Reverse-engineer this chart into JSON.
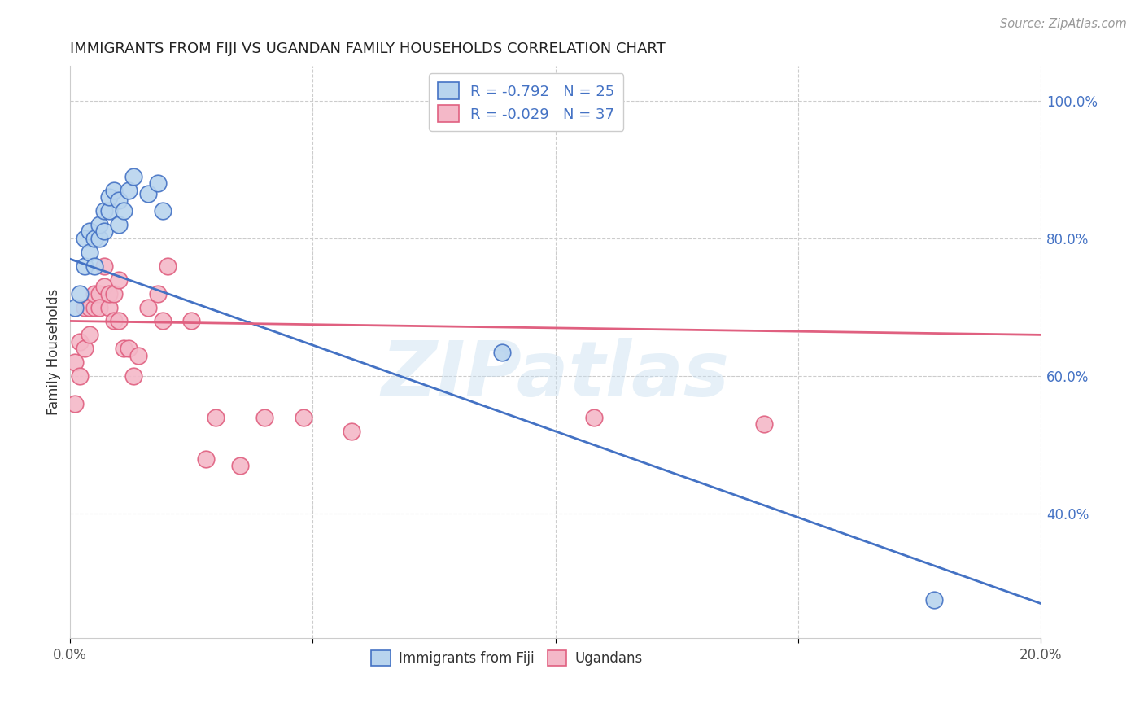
{
  "title": "IMMIGRANTS FROM FIJI VS UGANDAN FAMILY HOUSEHOLDS CORRELATION CHART",
  "source": "Source: ZipAtlas.com",
  "ylabel": "Family Households",
  "xlim": [
    0.0,
    0.2
  ],
  "ylim": [
    0.22,
    1.05
  ],
  "fiji_R": "-0.792",
  "fiji_N": "25",
  "ugandan_R": "-0.029",
  "ugandan_N": "37",
  "fiji_color": "#b8d4ee",
  "fiji_line_color": "#4472c4",
  "ugandan_color": "#f4b8c8",
  "ugandan_line_color": "#e06080",
  "watermark": "ZIPatlas",
  "fiji_trendline_x": [
    0.0,
    0.2
  ],
  "fiji_trendline_y": [
    0.77,
    0.27
  ],
  "ugandan_trendline_x": [
    0.0,
    0.2
  ],
  "ugandan_trendline_y": [
    0.68,
    0.66
  ],
  "fiji_x": [
    0.001,
    0.002,
    0.003,
    0.003,
    0.004,
    0.004,
    0.005,
    0.005,
    0.006,
    0.006,
    0.007,
    0.007,
    0.008,
    0.008,
    0.009,
    0.01,
    0.01,
    0.011,
    0.012,
    0.013,
    0.016,
    0.018,
    0.019,
    0.089,
    0.178
  ],
  "fiji_y": [
    0.7,
    0.72,
    0.76,
    0.8,
    0.78,
    0.81,
    0.76,
    0.8,
    0.8,
    0.82,
    0.81,
    0.84,
    0.84,
    0.86,
    0.87,
    0.855,
    0.82,
    0.84,
    0.87,
    0.89,
    0.865,
    0.88,
    0.84,
    0.635,
    0.275
  ],
  "ugandan_x": [
    0.001,
    0.001,
    0.002,
    0.002,
    0.003,
    0.003,
    0.004,
    0.004,
    0.005,
    0.005,
    0.006,
    0.006,
    0.007,
    0.007,
    0.008,
    0.008,
    0.009,
    0.009,
    0.01,
    0.01,
    0.011,
    0.012,
    0.013,
    0.014,
    0.016,
    0.018,
    0.019,
    0.02,
    0.025,
    0.028,
    0.03,
    0.035,
    0.04,
    0.048,
    0.058,
    0.108,
    0.143
  ],
  "ugandan_y": [
    0.62,
    0.56,
    0.6,
    0.65,
    0.64,
    0.7,
    0.66,
    0.7,
    0.7,
    0.72,
    0.72,
    0.7,
    0.76,
    0.73,
    0.7,
    0.72,
    0.68,
    0.72,
    0.68,
    0.74,
    0.64,
    0.64,
    0.6,
    0.63,
    0.7,
    0.72,
    0.68,
    0.76,
    0.68,
    0.48,
    0.54,
    0.47,
    0.54,
    0.54,
    0.52,
    0.54,
    0.53
  ]
}
